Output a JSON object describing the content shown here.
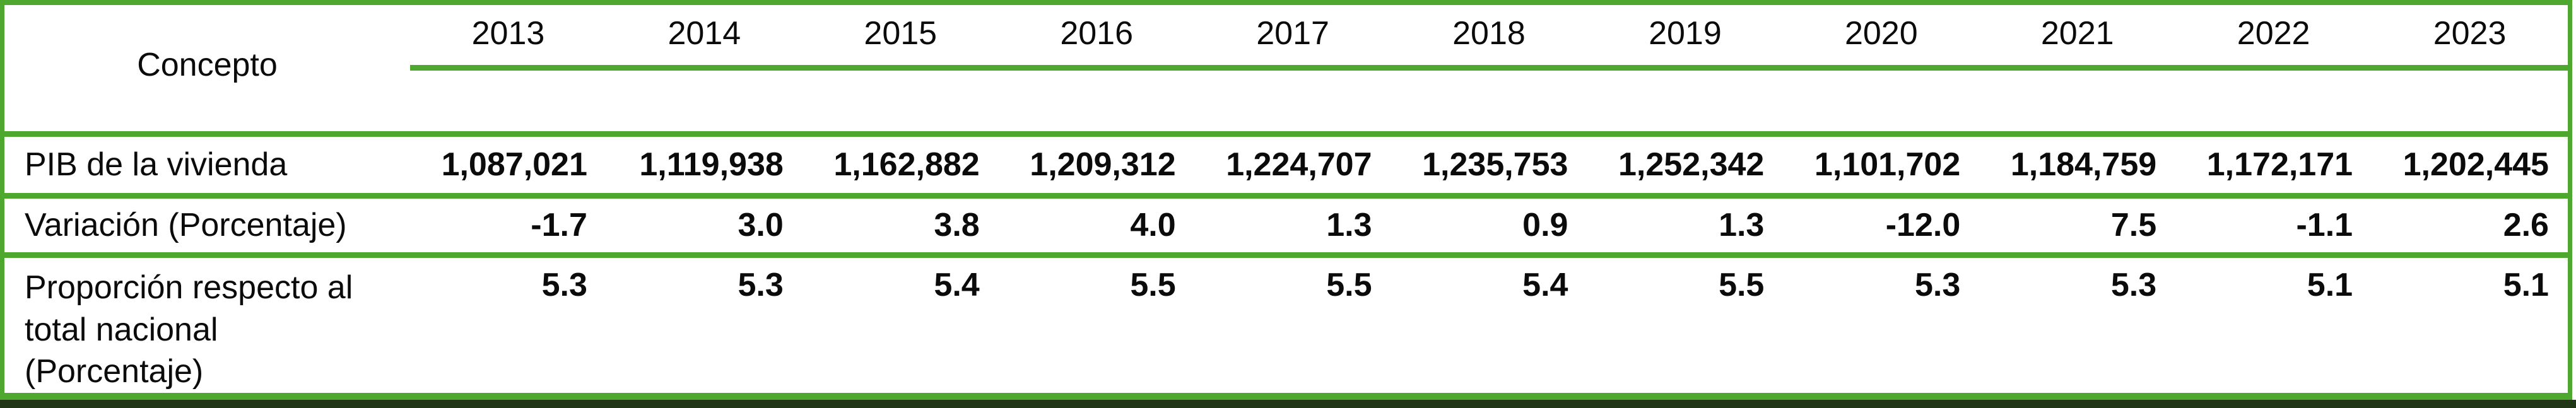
{
  "colors": {
    "border_green": "#4EA72E",
    "bottom_bar": "#203616",
    "text": "#0b0b0b"
  },
  "table": {
    "header": {
      "concept_label": "Concepto",
      "years": [
        "2013",
        "2014",
        "2015",
        "2016",
        "2017",
        "2018",
        "2019",
        "2020",
        "2021",
        "2022",
        "2023"
      ]
    },
    "rows": [
      {
        "label": "PIB de la vivienda",
        "values": [
          "1,087,021",
          "1,119,938",
          "1,162,882",
          "1,209,312",
          "1,224,707",
          "1,235,753",
          "1,252,342",
          "1,101,702",
          "1,184,759",
          "1,172,171",
          "1,202,445"
        ]
      },
      {
        "label": "Variación (Porcentaje)",
        "values": [
          "-1.7",
          "3.0",
          "3.8",
          "4.0",
          "1.3",
          "0.9",
          "1.3",
          "-12.0",
          "7.5",
          "-1.1",
          "2.6"
        ]
      },
      {
        "label": "Proporción respecto al\ntotal nacional\n(Porcentaje)",
        "values": [
          "5.3",
          "5.3",
          "5.4",
          "5.5",
          "5.5",
          "5.4",
          "5.5",
          "5.3",
          "5.3",
          "5.1",
          "5.1"
        ]
      }
    ]
  },
  "chart_data": {
    "type": "table",
    "title": "",
    "columns": [
      "Concepto",
      "2013",
      "2014",
      "2015",
      "2016",
      "2017",
      "2018",
      "2019",
      "2020",
      "2021",
      "2022",
      "2023"
    ],
    "rows": [
      {
        "label": "PIB de la vivienda",
        "values": [
          1087021,
          1119938,
          1162882,
          1209312,
          1224707,
          1235753,
          1252342,
          1101702,
          1184759,
          1172171,
          1202445
        ]
      },
      {
        "label": "Variación (Porcentaje)",
        "values": [
          -1.7,
          3.0,
          3.8,
          4.0,
          1.3,
          0.9,
          1.3,
          -12.0,
          7.5,
          -1.1,
          2.6
        ]
      },
      {
        "label": "Proporción respecto al total nacional (Porcentaje)",
        "values": [
          5.3,
          5.3,
          5.4,
          5.5,
          5.5,
          5.4,
          5.5,
          5.3,
          5.3,
          5.1,
          5.1
        ]
      }
    ],
    "layout_hints": {
      "grid": "horizontal green rules only",
      "value_alignment": "right",
      "header_alignment": "center"
    }
  }
}
